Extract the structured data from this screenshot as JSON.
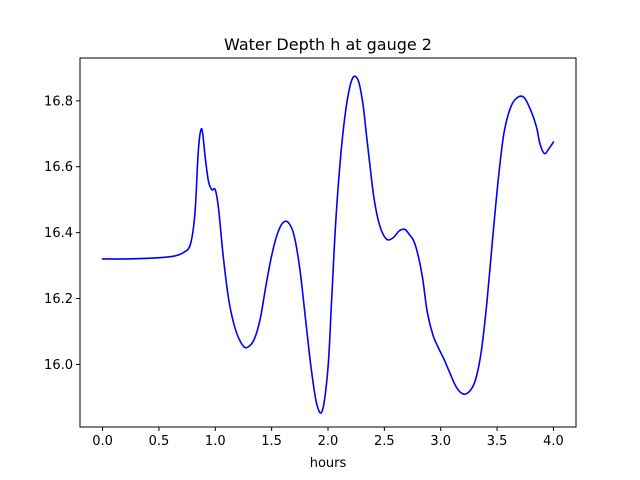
{
  "chart_data": {
    "type": "line",
    "title": "Water Depth h at gauge 2",
    "xlabel": "hours",
    "ylabel": "",
    "xlim": [
      -0.2,
      4.2
    ],
    "ylim": [
      15.81,
      16.93
    ],
    "xticks": [
      0.0,
      0.5,
      1.0,
      1.5,
      2.0,
      2.5,
      3.0,
      3.5,
      4.0
    ],
    "xtick_labels": [
      "0.0",
      "0.5",
      "1.0",
      "1.5",
      "2.0",
      "2.5",
      "3.0",
      "3.5",
      "4.0"
    ],
    "yticks": [
      16.0,
      16.2,
      16.4,
      16.6,
      16.8
    ],
    "ytick_labels": [
      "16.0",
      "16.2",
      "16.4",
      "16.6",
      "16.8"
    ],
    "grid": false,
    "line_color": "#0000ff",
    "series": [
      {
        "x": [
          0.0,
          0.2,
          0.4,
          0.55,
          0.65,
          0.72,
          0.78,
          0.82,
          0.85,
          0.88,
          0.91,
          0.94,
          0.97,
          1.0,
          1.03,
          1.07,
          1.12,
          1.18,
          1.25,
          1.3,
          1.35,
          1.4,
          1.45,
          1.5,
          1.55,
          1.6,
          1.65,
          1.7,
          1.75,
          1.8,
          1.85,
          1.9,
          1.95,
          2.0,
          2.03,
          2.07,
          2.12,
          2.17,
          2.22,
          2.27,
          2.31,
          2.34,
          2.37,
          2.41,
          2.46,
          2.52,
          2.58,
          2.63,
          2.68,
          2.72,
          2.76,
          2.8,
          2.84,
          2.88,
          2.93,
          2.98,
          3.03,
          3.08,
          3.14,
          3.2,
          3.26,
          3.31,
          3.36,
          3.41,
          3.46,
          3.51,
          3.56,
          3.62,
          3.68,
          3.74,
          3.8,
          3.85,
          3.88,
          3.92,
          3.96,
          4.0
        ],
        "y": [
          16.32,
          16.32,
          16.322,
          16.325,
          16.33,
          16.34,
          16.365,
          16.46,
          16.65,
          16.715,
          16.63,
          16.555,
          16.53,
          16.53,
          16.47,
          16.33,
          16.195,
          16.105,
          16.055,
          16.055,
          16.08,
          16.14,
          16.24,
          16.33,
          16.395,
          16.43,
          16.43,
          16.39,
          16.29,
          16.14,
          15.99,
          15.88,
          15.86,
          15.99,
          16.18,
          16.44,
          16.66,
          16.8,
          16.87,
          16.86,
          16.79,
          16.7,
          16.61,
          16.5,
          16.42,
          16.38,
          16.385,
          16.405,
          16.41,
          16.395,
          16.375,
          16.33,
          16.26,
          16.16,
          16.09,
          16.05,
          16.015,
          15.975,
          15.93,
          15.91,
          15.92,
          15.955,
          16.04,
          16.19,
          16.38,
          16.56,
          16.7,
          16.78,
          16.81,
          16.81,
          16.77,
          16.72,
          16.67,
          16.64,
          16.655,
          16.675
        ]
      }
    ]
  }
}
